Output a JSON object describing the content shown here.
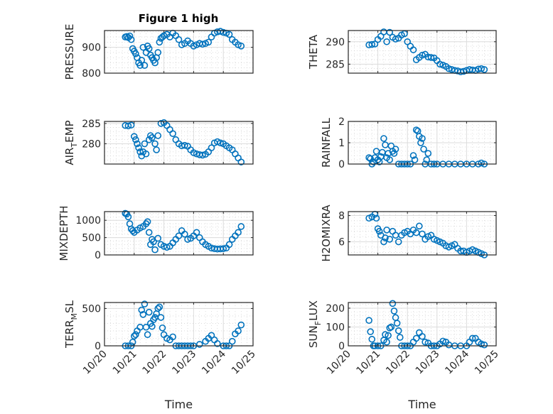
{
  "figure_title": "Figure 1 high",
  "chart_data": [
    {
      "type": "scatter",
      "id": "pressure",
      "ylabel": "PRESSURE",
      "title": "Figure 1 high",
      "xlabel": "",
      "xlim": [
        0,
        5
      ],
      "ylim": [
        800,
        965
      ],
      "yticks": [
        800,
        900
      ],
      "ytick_labels": [
        "800",
        "900"
      ],
      "x_unit": "days since 10/20",
      "x": [
        0.7,
        0.75,
        0.8,
        0.85,
        0.9,
        0.95,
        1.0,
        1.05,
        1.1,
        1.15,
        1.2,
        1.25,
        1.3,
        1.35,
        1.4,
        1.45,
        1.5,
        1.55,
        1.6,
        1.65,
        1.7,
        1.75,
        1.8,
        1.85,
        1.9,
        1.95,
        2.0,
        2.1,
        2.2,
        2.3,
        2.4,
        2.5,
        2.6,
        2.7,
        2.8,
        2.9,
        3.0,
        3.1,
        3.2,
        3.3,
        3.4,
        3.5,
        3.6,
        3.7,
        3.8,
        3.9,
        4.0,
        4.1,
        4.2,
        4.3,
        4.4,
        4.5,
        4.6
      ],
      "y": [
        940,
        942,
        938,
        944,
        930,
        895,
        885,
        875,
        860,
        840,
        830,
        850,
        900,
        830,
        880,
        905,
        895,
        870,
        860,
        850,
        840,
        860,
        880,
        920,
        935,
        940,
        945,
        950,
        940,
        955,
        945,
        930,
        910,
        915,
        925,
        915,
        905,
        910,
        915,
        912,
        915,
        920,
        940,
        955,
        960,
        962,
        958,
        955,
        950,
        930,
        920,
        910,
        905
      ]
    },
    {
      "type": "scatter",
      "id": "theta",
      "ylabel": "THETA",
      "xlabel": "",
      "xlim": [
        0,
        5
      ],
      "ylim": [
        283,
        292.5
      ],
      "yticks": [
        285,
        290
      ],
      "ytick_labels": [
        "285",
        "290"
      ],
      "x": [
        0.7,
        0.8,
        0.9,
        1.0,
        1.1,
        1.2,
        1.3,
        1.4,
        1.5,
        1.6,
        1.7,
        1.8,
        1.9,
        2.0,
        2.1,
        2.2,
        2.3,
        2.4,
        2.5,
        2.6,
        2.7,
        2.8,
        2.9,
        3.0,
        3.1,
        3.2,
        3.3,
        3.4,
        3.5,
        3.6,
        3.7,
        3.8,
        3.9,
        4.0,
        4.1,
        4.2,
        4.3,
        4.4,
        4.5,
        4.6
      ],
      "y": [
        289.3,
        289.4,
        289.5,
        290.5,
        291.2,
        292.2,
        290.0,
        292.1,
        291.0,
        290.6,
        290.8,
        291.5,
        291.8,
        290.0,
        289.0,
        288.2,
        286.0,
        286.5,
        287.0,
        287.2,
        286.6,
        286.5,
        286.4,
        285.8,
        285.0,
        284.8,
        284.5,
        284.0,
        283.8,
        283.6,
        283.5,
        283.3,
        283.4,
        283.6,
        283.8,
        283.7,
        283.6,
        283.9,
        284.0,
        283.8
      ]
    },
    {
      "type": "scatter",
      "id": "air_temp",
      "ylabel": "AIR_TEMP",
      "xlabel": "",
      "xlim": [
        0,
        5
      ],
      "ylim": [
        275,
        285.5
      ],
      "yticks": [
        280,
        285
      ],
      "ytick_labels": [
        "280",
        "285"
      ],
      "x": [
        0.7,
        0.8,
        0.9,
        1.0,
        1.05,
        1.1,
        1.15,
        1.2,
        1.25,
        1.3,
        1.35,
        1.4,
        1.5,
        1.55,
        1.6,
        1.7,
        1.75,
        1.8,
        1.9,
        2.0,
        2.1,
        2.2,
        2.3,
        2.4,
        2.5,
        2.6,
        2.7,
        2.8,
        2.9,
        3.0,
        3.1,
        3.2,
        3.3,
        3.4,
        3.5,
        3.6,
        3.7,
        3.8,
        3.9,
        4.0,
        4.1,
        4.2,
        4.3,
        4.4,
        4.5,
        4.6
      ],
      "y": [
        284.5,
        284.4,
        284.6,
        281.8,
        281.0,
        280.0,
        279.0,
        278.0,
        277.0,
        278.0,
        280.0,
        277.5,
        281.0,
        282.0,
        281.5,
        280.0,
        278.5,
        282.0,
        285.0,
        285.2,
        284.5,
        283.5,
        282.5,
        281.0,
        280.0,
        279.5,
        279.6,
        279.4,
        278.5,
        277.8,
        277.5,
        277.3,
        277.2,
        277.4,
        278.0,
        279.0,
        280.2,
        280.5,
        280.2,
        280.0,
        279.5,
        279.0,
        278.5,
        277.5,
        276.5,
        275.5
      ]
    },
    {
      "type": "scatter",
      "id": "rainfall",
      "ylabel": "RAINFALL",
      "xlabel": "",
      "xlim": [
        0,
        5
      ],
      "ylim": [
        0,
        2
      ],
      "yticks": [
        0,
        1,
        2
      ],
      "ytick_labels": [
        "0",
        "1",
        "2"
      ],
      "x": [
        0.7,
        0.75,
        0.8,
        0.85,
        0.9,
        0.95,
        1.0,
        1.05,
        1.1,
        1.15,
        1.2,
        1.25,
        1.3,
        1.35,
        1.4,
        1.45,
        1.5,
        1.55,
        1.6,
        1.7,
        1.8,
        1.9,
        2.0,
        2.1,
        2.2,
        2.25,
        2.3,
        2.35,
        2.4,
        2.45,
        2.5,
        2.55,
        2.6,
        2.65,
        2.7,
        2.8,
        2.9,
        3.0,
        3.2,
        3.4,
        3.6,
        3.8,
        4.0,
        4.2,
        4.4,
        4.5,
        4.6
      ],
      "y": [
        0.3,
        0.25,
        0.0,
        0.1,
        0.3,
        0.6,
        0.2,
        0.1,
        0.35,
        0.55,
        1.2,
        0.9,
        0.3,
        0.5,
        0.2,
        0.85,
        0.6,
        0.5,
        0.7,
        0.0,
        0.0,
        0.0,
        0.0,
        0.0,
        0.4,
        0.2,
        1.6,
        1.55,
        1.3,
        1.0,
        1.2,
        0.7,
        0.0,
        0.2,
        0.5,
        0.0,
        0.0,
        0.0,
        0.0,
        0.0,
        0.0,
        0.0,
        0.0,
        0.0,
        0.0,
        0.05,
        0.0
      ]
    },
    {
      "type": "scatter",
      "id": "mixdepth",
      "ylabel": "MIXDEPTH",
      "xlabel": "",
      "xlim": [
        0,
        5
      ],
      "ylim": [
        0,
        1250
      ],
      "yticks": [
        0,
        500,
        1000
      ],
      "ytick_labels": [
        "0",
        "500",
        "1000"
      ],
      "x": [
        0.7,
        0.75,
        0.8,
        0.85,
        0.9,
        0.95,
        1.0,
        1.1,
        1.2,
        1.3,
        1.4,
        1.45,
        1.5,
        1.55,
        1.6,
        1.65,
        1.7,
        1.8,
        1.9,
        2.0,
        2.1,
        2.2,
        2.3,
        2.4,
        2.5,
        2.6,
        2.7,
        2.8,
        2.9,
        3.0,
        3.1,
        3.2,
        3.3,
        3.4,
        3.5,
        3.6,
        3.7,
        3.8,
        3.9,
        4.0,
        4.1,
        4.2,
        4.3,
        4.4,
        4.5,
        4.6
      ],
      "y": [
        1200,
        1180,
        1100,
        900,
        750,
        700,
        650,
        720,
        780,
        820,
        900,
        960,
        650,
        300,
        450,
        380,
        150,
        480,
        300,
        250,
        220,
        250,
        350,
        450,
        550,
        700,
        600,
        450,
        480,
        550,
        650,
        500,
        380,
        300,
        250,
        200,
        180,
        170,
        175,
        180,
        200,
        300,
        450,
        550,
        650,
        820
      ]
    },
    {
      "type": "scatter",
      "id": "h2omixra",
      "ylabel": "H2OMIXRA",
      "xlabel": "",
      "xlim": [
        0,
        5
      ],
      "ylim": [
        5,
        8.3
      ],
      "yticks": [
        6,
        8
      ],
      "ytick_labels": [
        "6",
        "8"
      ],
      "x": [
        0.7,
        0.8,
        0.9,
        0.95,
        1.0,
        1.05,
        1.1,
        1.2,
        1.25,
        1.3,
        1.4,
        1.5,
        1.6,
        1.7,
        1.8,
        1.9,
        2.0,
        2.1,
        2.2,
        2.3,
        2.4,
        2.5,
        2.6,
        2.7,
        2.8,
        2.9,
        3.0,
        3.1,
        3.2,
        3.3,
        3.4,
        3.5,
        3.6,
        3.7,
        3.8,
        3.9,
        4.0,
        4.1,
        4.2,
        4.3,
        4.4,
        4.5,
        4.6
      ],
      "y": [
        7.8,
        7.9,
        8.1,
        7.8,
        7.0,
        6.8,
        6.5,
        6.0,
        6.3,
        6.9,
        6.2,
        6.8,
        6.5,
        6.0,
        6.5,
        6.7,
        6.8,
        6.6,
        6.9,
        6.7,
        7.2,
        6.6,
        6.2,
        6.4,
        6.5,
        6.2,
        6.1,
        6.0,
        5.9,
        5.7,
        5.6,
        5.7,
        5.8,
        5.5,
        5.3,
        5.3,
        5.2,
        5.3,
        5.4,
        5.3,
        5.2,
        5.1,
        5.0
      ]
    },
    {
      "type": "scatter",
      "id": "terr_msl",
      "ylabel": "TERR_MSL",
      "xlabel": "Time",
      "xlim": [
        0,
        5
      ],
      "ylim": [
        0,
        580
      ],
      "yticks": [
        0,
        500
      ],
      "ytick_labels": [
        "0",
        "500"
      ],
      "xticks": [
        0,
        1,
        2,
        3,
        4,
        5
      ],
      "xtick_labels": [
        "10/20",
        "10/21",
        "10/22",
        "10/23",
        "10/24",
        "10/25"
      ],
      "x": [
        0.7,
        0.8,
        0.9,
        0.95,
        1.0,
        1.05,
        1.1,
        1.2,
        1.25,
        1.3,
        1.35,
        1.4,
        1.45,
        1.5,
        1.55,
        1.6,
        1.65,
        1.7,
        1.75,
        1.8,
        1.85,
        1.9,
        1.95,
        2.0,
        2.1,
        2.2,
        2.3,
        2.4,
        2.5,
        2.6,
        2.7,
        2.8,
        2.9,
        3.0,
        3.2,
        3.4,
        3.5,
        3.6,
        3.7,
        3.8,
        4.0,
        4.1,
        4.2,
        4.3,
        4.4,
        4.5,
        4.6
      ],
      "y": [
        0,
        0,
        0,
        50,
        130,
        150,
        200,
        250,
        480,
        420,
        560,
        250,
        150,
        450,
        300,
        260,
        350,
        380,
        430,
        500,
        520,
        380,
        240,
        150,
        100,
        80,
        120,
        0,
        0,
        0,
        0,
        0,
        0,
        0,
        20,
        60,
        100,
        140,
        80,
        30,
        0,
        0,
        0,
        60,
        160,
        200,
        280
      ]
    },
    {
      "type": "scatter",
      "id": "sun_flux",
      "ylabel": "SUN_FLUX",
      "xlabel": "Time",
      "xlim": [
        0,
        5
      ],
      "ylim": [
        0,
        230
      ],
      "yticks": [
        0,
        100,
        200
      ],
      "ytick_labels": [
        "0",
        "100",
        "200"
      ],
      "xticks": [
        0,
        1,
        2,
        3,
        4,
        5
      ],
      "xtick_labels": [
        "10/20",
        "10/21",
        "10/22",
        "10/23",
        "10/24",
        "10/25"
      ],
      "x": [
        0.7,
        0.75,
        0.8,
        0.85,
        0.9,
        1.0,
        1.1,
        1.2,
        1.25,
        1.3,
        1.35,
        1.4,
        1.45,
        1.5,
        1.55,
        1.6,
        1.65,
        1.7,
        1.75,
        1.8,
        1.9,
        2.0,
        2.1,
        2.2,
        2.3,
        2.4,
        2.5,
        2.6,
        2.7,
        2.8,
        2.9,
        3.0,
        3.1,
        3.2,
        3.3,
        3.4,
        3.6,
        3.8,
        4.0,
        4.1,
        4.2,
        4.3,
        4.4,
        4.5,
        4.6
      ],
      "y": [
        135,
        75,
        35,
        0,
        0,
        0,
        0,
        30,
        60,
        20,
        55,
        95,
        100,
        225,
        185,
        150,
        120,
        80,
        45,
        0,
        0,
        0,
        0,
        20,
        40,
        70,
        50,
        20,
        15,
        0,
        0,
        0,
        10,
        25,
        20,
        5,
        0,
        0,
        0,
        20,
        40,
        40,
        20,
        10,
        5
      ]
    }
  ]
}
